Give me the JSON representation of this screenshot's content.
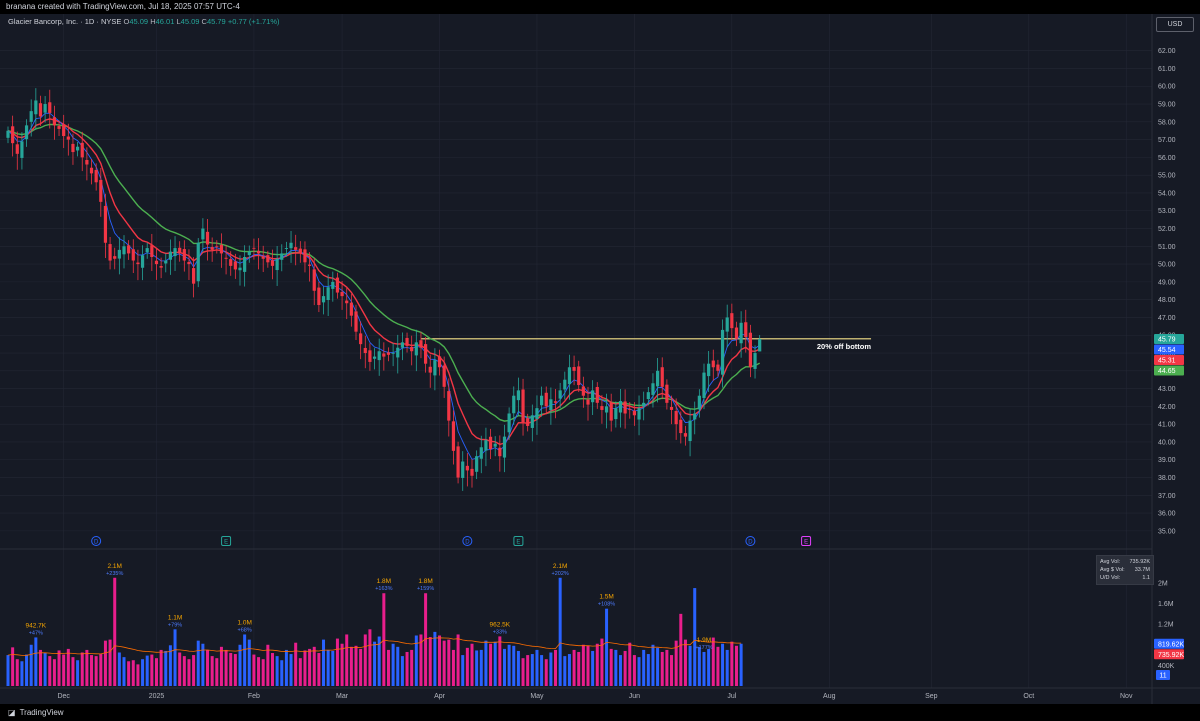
{
  "header": {
    "credit": "branana created with TradingView.com, Jul 18, 2025 07:57 UTC-4"
  },
  "legend": {
    "symbol": "Glacier Bancorp, Inc. · 1D · NYSE",
    "open_label": "O",
    "open": "45.09",
    "high_label": "H",
    "high": "46.01",
    "low_label": "L",
    "low": "45.09",
    "close_label": "C",
    "close": "45.79",
    "change": "+0.77 (+1.71%)"
  },
  "currency": "USD",
  "footer": {
    "brand": "TradingView"
  },
  "volume_stats": {
    "avg_vol_label": "Avg Vol:",
    "avg_vol": "735.92K",
    "avg_dollar_label": "Avg $ Vol:",
    "avg_dollar": "33.7M",
    "ud_label": "U/D Vol:",
    "ud": "1.1"
  },
  "colors": {
    "background": "#161a25",
    "grid": "#232734",
    "up": "#26a69a",
    "down": "#f23645",
    "ema_fast": "#2962ff",
    "ema_mid": "#f23645",
    "ema_slow": "#4caf50",
    "level_line": "#f5e18a",
    "vol_up": "#2962ff",
    "vol_down": "#e91e8c",
    "vol_ma": "#ff6d00",
    "vol_label": "#f7a600"
  },
  "chart_data": {
    "type": "candlestick",
    "price_axis": {
      "ylim": [
        34.6,
        62.6
      ],
      "ticks": [
        "62.00",
        "61.00",
        "60.00",
        "59.00",
        "58.00",
        "57.00",
        "56.00",
        "55.00",
        "54.00",
        "53.00",
        "52.00",
        "51.00",
        "50.00",
        "49.00",
        "48.00",
        "47.00",
        "46.00",
        "45.00",
        "44.00",
        "43.00",
        "42.00",
        "41.00",
        "40.00",
        "39.00",
        "38.00",
        "37.00",
        "36.00",
        "35.00"
      ]
    },
    "price_tags": [
      {
        "label": "45.79",
        "value": 45.79,
        "color": "#26a69a"
      },
      {
        "label": "45.54",
        "value": 45.54,
        "color": "#2962ff"
      },
      {
        "label": "45.31",
        "value": 45.31,
        "color": "#f23645"
      },
      {
        "label": "44.65",
        "value": 44.65,
        "color": "#4caf50"
      }
    ],
    "time_axis": {
      "labels": [
        {
          "text": "Dec",
          "bar": 12
        },
        {
          "text": "2025",
          "bar": 32
        },
        {
          "text": "Feb",
          "bar": 53
        },
        {
          "text": "Mar",
          "bar": 72
        },
        {
          "text": "Apr",
          "bar": 93
        },
        {
          "text": "May",
          "bar": 114
        },
        {
          "text": "Jun",
          "bar": 135
        },
        {
          "text": "Jul",
          "bar": 156
        },
        {
          "text": "Aug",
          "bar": 177
        },
        {
          "text": "Sep",
          "bar": 199
        },
        {
          "text": "Oct",
          "bar": 220
        },
        {
          "text": "Nov",
          "bar": 241
        }
      ]
    },
    "level_line": {
      "value": 45.8,
      "from_bar": 89,
      "to_bar": 186,
      "label": "20% off bottom"
    },
    "events": [
      {
        "letter": "D",
        "bar": 19,
        "color": "#2962ff"
      },
      {
        "letter": "E",
        "bar": 47,
        "color": "#26a69a"
      },
      {
        "letter": "D",
        "bar": 99,
        "color": "#2962ff"
      },
      {
        "letter": "E",
        "bar": 110,
        "color": "#26a69a"
      },
      {
        "letter": "D",
        "bar": 160,
        "color": "#2962ff"
      },
      {
        "letter": "E",
        "bar": 172,
        "color": "#e040fb"
      }
    ],
    "close": [
      57.5,
      56.8,
      56.2,
      56.9,
      57.8,
      58.6,
      59.2,
      58.3,
      59.0,
      58.5,
      57.8,
      57.6,
      57.2,
      57.0,
      56.3,
      56.6,
      56.0,
      55.6,
      55.1,
      54.6,
      53.5,
      51.2,
      50.2,
      50.3,
      50.8,
      51.0,
      50.6,
      50.2,
      50.0,
      50.5,
      50.9,
      50.4,
      50.0,
      49.8,
      50.2,
      50.7,
      50.9,
      50.6,
      50.2,
      50.0,
      48.9,
      51.2,
      52.0,
      51.1,
      50.8,
      51.0,
      50.6,
      50.3,
      49.9,
      49.7,
      49.8,
      50.4,
      50.7,
      50.9,
      50.6,
      50.3,
      50.1,
      49.9,
      50.3,
      50.6,
      50.9,
      51.2,
      50.8,
      50.6,
      50.1,
      49.9,
      48.5,
      47.7,
      48.2,
      48.7,
      49.0,
      48.4,
      48.2,
      47.8,
      47.1,
      46.2,
      45.5,
      45.0,
      44.5,
      44.8,
      45.1,
      44.8,
      44.9,
      45.0,
      45.3,
      45.6,
      45.4,
      45.1,
      45.6,
      45.3,
      44.4,
      43.9,
      44.6,
      44.2,
      43.1,
      41.2,
      39.5,
      38.0,
      38.9,
      38.4,
      38.1,
      39.2,
      39.7,
      40.1,
      39.6,
      39.9,
      39.2,
      40.3,
      41.6,
      42.6,
      42.9,
      41.1,
      40.9,
      41.5,
      41.9,
      42.6,
      42.0,
      42.4,
      42.2,
      42.9,
      43.5,
      44.2,
      44.0,
      43.2,
      42.6,
      42.1,
      42.9,
      42.2,
      41.8,
      42.0,
      41.2,
      41.9,
      42.3,
      41.6,
      41.8,
      41.5,
      41.9,
      42.2,
      42.8,
      43.3,
      44.0,
      43.1,
      42.2,
      41.8,
      41.0,
      40.5,
      40.3,
      41.2,
      41.6,
      42.6,
      43.9,
      44.4,
      44.2,
      44.0,
      46.3,
      47.0,
      46.4,
      45.8,
      46.7,
      45.9,
      44.2,
      45.0,
      45.79
    ],
    "volume": {
      "ylim": [
        0,
        2600000
      ],
      "ticks": [
        {
          "label": "2M",
          "value": 2000000
        },
        {
          "label": "1.6M",
          "value": 1600000
        },
        {
          "label": "1.2M",
          "value": 1200000
        },
        {
          "label": "400K",
          "value": 400000
        }
      ],
      "tags": [
        {
          "label": "819.62K",
          "value": 819620,
          "color": "#2962ff"
        },
        {
          "label": "735.92K",
          "value": 735920,
          "color": "#f23645"
        }
      ],
      "values": [
        600000,
        750000,
        520000,
        480000,
        610000,
        800000,
        942700,
        700000,
        640000,
        580000,
        520000,
        690000,
        610000,
        720000,
        560000,
        500000,
        650000,
        700000,
        600000,
        580000,
        620000,
        880000,
        900000,
        2100000,
        650000,
        560000,
        480000,
        500000,
        420000,
        520000,
        590000,
        610000,
        540000,
        700000,
        680000,
        790000,
        1100000,
        650000,
        580000,
        520000,
        600000,
        880000,
        820000,
        700000,
        580000,
        540000,
        760000,
        700000,
        640000,
        620000,
        800000,
        1000000,
        900000,
        610000,
        560000,
        520000,
        800000,
        640000,
        580000,
        500000,
        700000,
        620000,
        840000,
        540000,
        690000,
        720000,
        760000,
        640000,
        900000,
        700000,
        680000,
        920000,
        820000,
        1000000,
        760000,
        780000,
        720000,
        1000000,
        1100000,
        860000,
        960000,
        1800000,
        700000,
        820000,
        760000,
        580000,
        660000,
        700000,
        980000,
        1000000,
        1800000,
        950000,
        1050000,
        980000,
        880000,
        900000,
        700000,
        1000000,
        600000,
        740000,
        820000,
        690000,
        700000,
        880000,
        820000,
        860000,
        962500,
        720000,
        800000,
        780000,
        680000,
        540000,
        600000,
        620000,
        700000,
        600000,
        520000,
        650000,
        700000,
        2100000,
        580000,
        620000,
        700000,
        660000,
        800000,
        780000,
        680000,
        820000,
        920000,
        1500000,
        720000,
        700000,
        600000,
        680000,
        840000,
        600000,
        560000,
        700000,
        620000,
        800000,
        740000,
        660000,
        700000,
        600000,
        880000,
        1400000,
        900000,
        780000,
        1900000,
        760000,
        660000,
        720000,
        940000,
        760000,
        820000,
        700000,
        860000,
        780000,
        819620
      ],
      "ma": 750000,
      "annotations": [
        {
          "bar": 6,
          "vol": "942.7K",
          "pct": "+47%"
        },
        {
          "bar": 23,
          "vol": "2.1M",
          "pct": "+235%"
        },
        {
          "bar": 36,
          "vol": "1.1M",
          "pct": "+79%"
        },
        {
          "bar": 51,
          "vol": "1.0M",
          "pct": "+68%"
        },
        {
          "bar": 81,
          "vol": "1.8M",
          "pct": "+163%"
        },
        {
          "bar": 90,
          "vol": "1.8M",
          "pct": "+159%"
        },
        {
          "bar": 106,
          "vol": "962.5K",
          "pct": "+33%"
        },
        {
          "bar": 119,
          "vol": "2.1M",
          "pct": "+202%"
        },
        {
          "bar": 129,
          "vol": "1.5M",
          "pct": "+108%"
        },
        {
          "bar": 150,
          "vol": "1.9M",
          "pct": "+177%"
        }
      ],
      "count_badge": "11"
    }
  }
}
